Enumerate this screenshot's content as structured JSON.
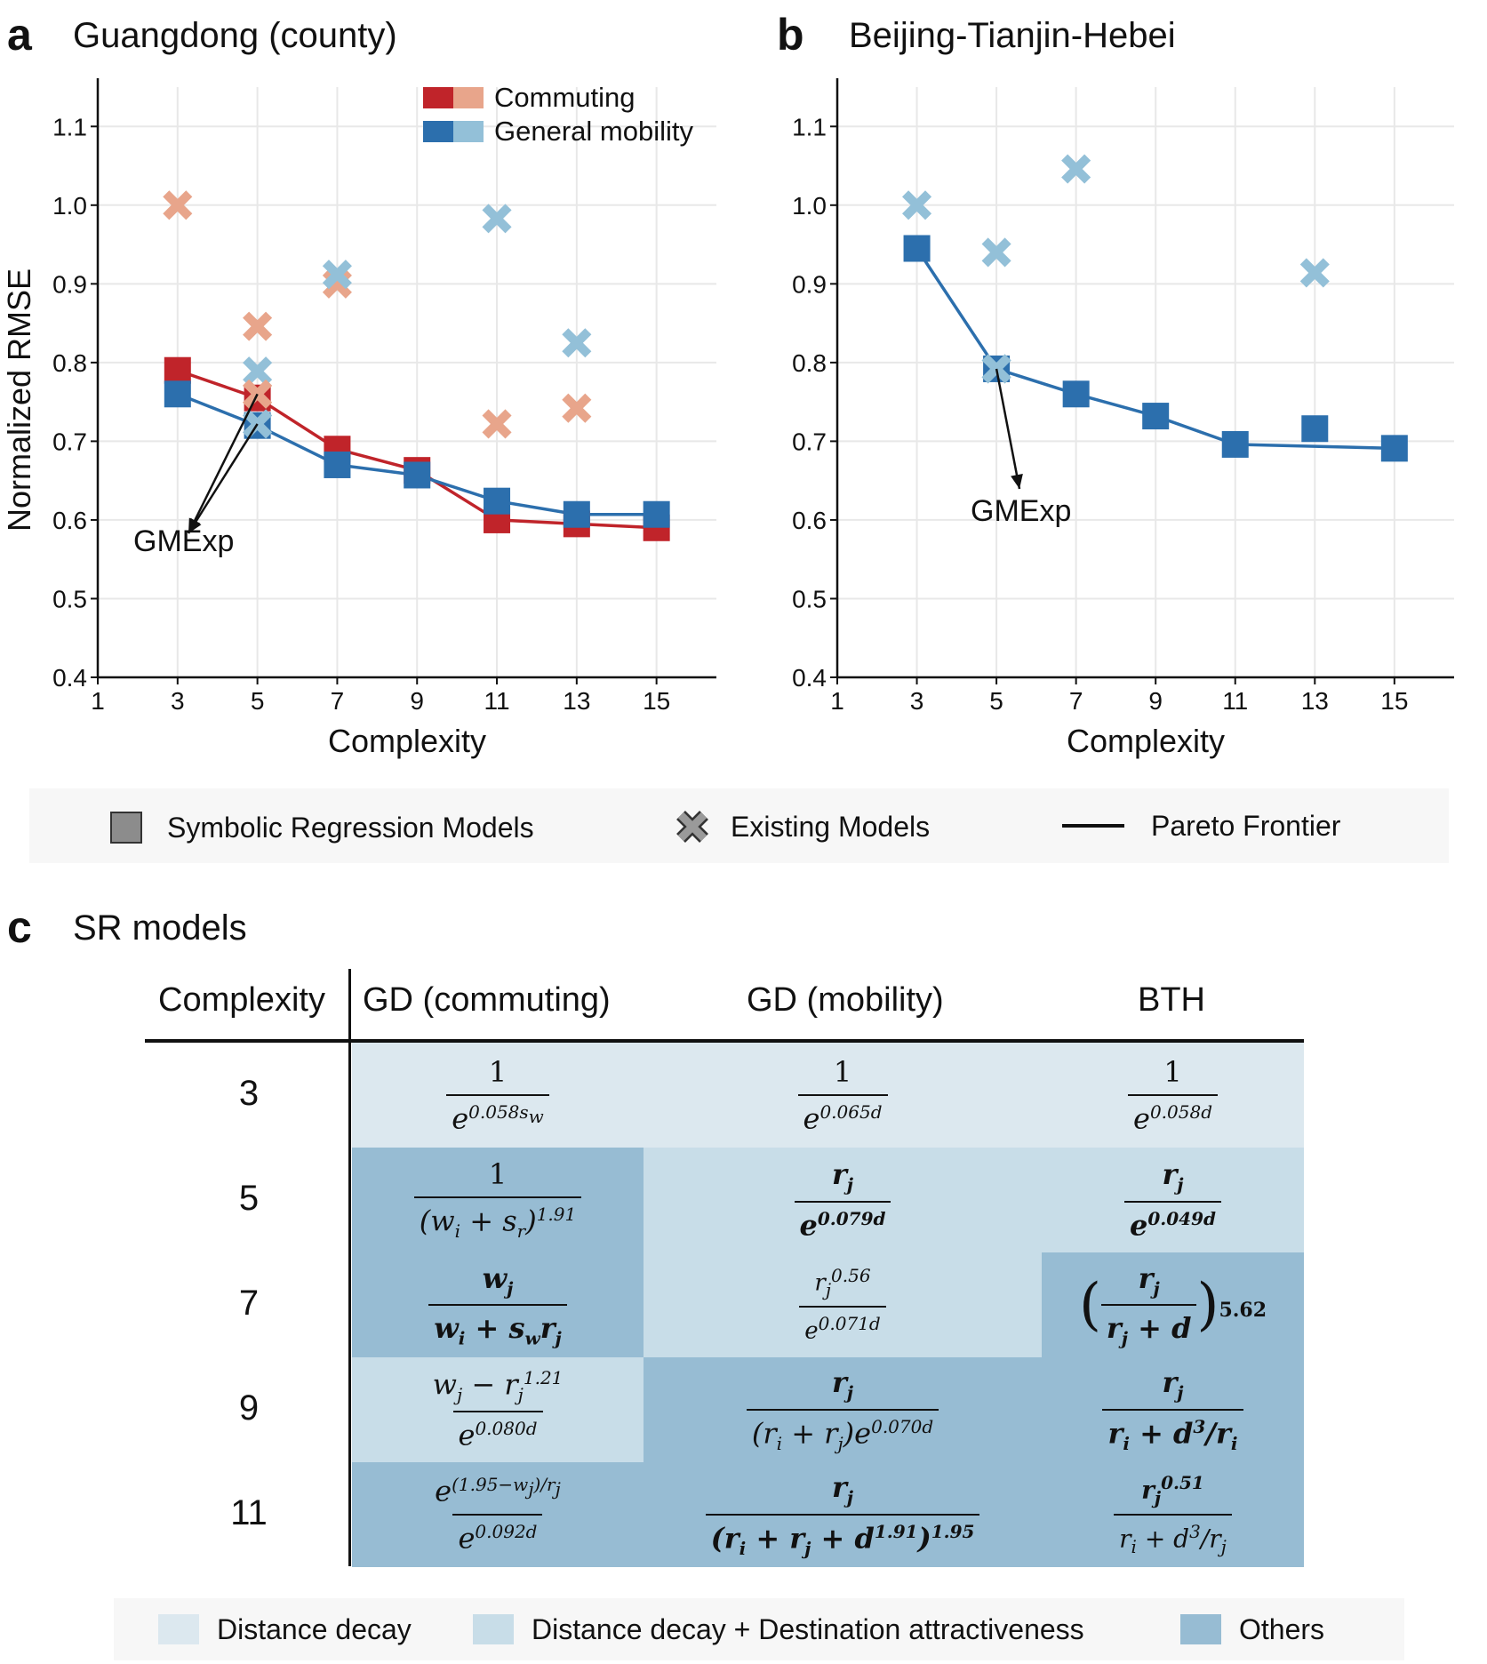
{
  "panel_a": {
    "letter": "a",
    "title": "Guangdong (county)"
  },
  "panel_b": {
    "letter": "b",
    "title": "Beijing-Tianjin-Hebei"
  },
  "panel_c": {
    "letter": "c",
    "title": "SR models"
  },
  "colors": {
    "commuting_dark": "#c0242a",
    "commuting_light": "#e8a58b",
    "mobility_dark": "#2c6fad",
    "mobility_light": "#93c0d8",
    "grid": "#e8e8e8"
  },
  "chart_data": [
    {
      "type": "scatter",
      "panel": "a",
      "title": "Guangdong (county)",
      "xlabel": "Complexity",
      "ylabel": "Normalized RMSE",
      "xlim": [
        1,
        16.5
      ],
      "ylim": [
        0.4,
        1.15
      ],
      "xticks": [
        "1",
        "3",
        "5",
        "7",
        "9",
        "11",
        "13",
        "15"
      ],
      "yticks": [
        "0.4",
        "0.5",
        "0.6",
        "0.7",
        "0.8",
        "0.9",
        "1.0",
        "1.1"
      ],
      "legend": [
        "Commuting",
        "General mobility"
      ],
      "annotation": "GMExp",
      "series": [
        {
          "name": "Commuting SR",
          "kind": "sr",
          "color": "commuting_dark",
          "x": [
            3,
            5,
            7,
            9,
            11,
            13,
            15
          ],
          "y": [
            0.79,
            0.755,
            0.69,
            0.663,
            0.6,
            0.595,
            0.59
          ]
        },
        {
          "name": "Mobility SR",
          "kind": "sr",
          "color": "mobility_dark",
          "x": [
            3,
            5,
            7,
            9,
            11,
            13,
            15
          ],
          "y": [
            0.76,
            0.72,
            0.67,
            0.657,
            0.624,
            0.607,
            0.607
          ]
        },
        {
          "name": "Commuting Existing",
          "kind": "existing",
          "color": "commuting_light",
          "x": [
            3,
            5,
            5,
            7,
            11,
            13
          ],
          "y": [
            1.0,
            0.846,
            0.76,
            0.9,
            0.722,
            0.742
          ]
        },
        {
          "name": "Mobility Existing",
          "kind": "existing",
          "color": "mobility_light",
          "x": [
            5,
            5,
            7,
            11,
            13
          ],
          "y": [
            0.789,
            0.722,
            0.912,
            0.983,
            0.825
          ]
        }
      ]
    },
    {
      "type": "scatter",
      "panel": "b",
      "title": "Beijing-Tianjin-Hebei",
      "xlabel": "Complexity",
      "ylabel": "",
      "xlim": [
        1,
        16.5
      ],
      "ylim": [
        0.4,
        1.15
      ],
      "xticks": [
        "1",
        "3",
        "5",
        "7",
        "9",
        "11",
        "13",
        "15"
      ],
      "yticks": [
        "0.4",
        "0.5",
        "0.6",
        "0.7",
        "0.8",
        "0.9",
        "1.0",
        "1.1"
      ],
      "annotation": "GMExp",
      "series": [
        {
          "name": "Mobility SR",
          "kind": "sr",
          "color": "mobility_dark",
          "x": [
            3,
            5,
            7,
            9,
            11,
            13,
            15
          ],
          "y": [
            0.945,
            0.792,
            0.76,
            0.732,
            0.696,
            0.716,
            0.691
          ],
          "frontier_x": [
            3,
            5,
            7,
            9,
            11,
            15
          ],
          "frontier_y": [
            0.945,
            0.792,
            0.76,
            0.732,
            0.696,
            0.691
          ]
        },
        {
          "name": "Mobility Existing",
          "kind": "existing",
          "color": "mobility_light",
          "x": [
            3,
            5,
            5,
            7,
            13
          ],
          "y": [
            1.0,
            0.94,
            0.792,
            1.046,
            0.914
          ]
        }
      ]
    }
  ],
  "legend_ab": {
    "sr": "Symbolic Regression Models",
    "existing": "Existing Models",
    "pareto": "Pareto Frontier"
  },
  "table": {
    "headers": [
      "Complexity",
      "GD (commuting)",
      "GD (mobility)",
      "BTH"
    ],
    "complexities": [
      "3",
      "5",
      "7",
      "9",
      "11"
    ],
    "row3": {
      "gd_c_num": "1",
      "gd_m_num": "1",
      "bth_num": "1"
    }
  },
  "legend_c": {
    "distance_decay": "Distance decay",
    "dd_attract": "Distance decay + Destination attractiveness",
    "others": "Others",
    "color_dd": "#dce8ef",
    "color_dda": "#c8dde8",
    "color_others": "#97bcd3"
  }
}
